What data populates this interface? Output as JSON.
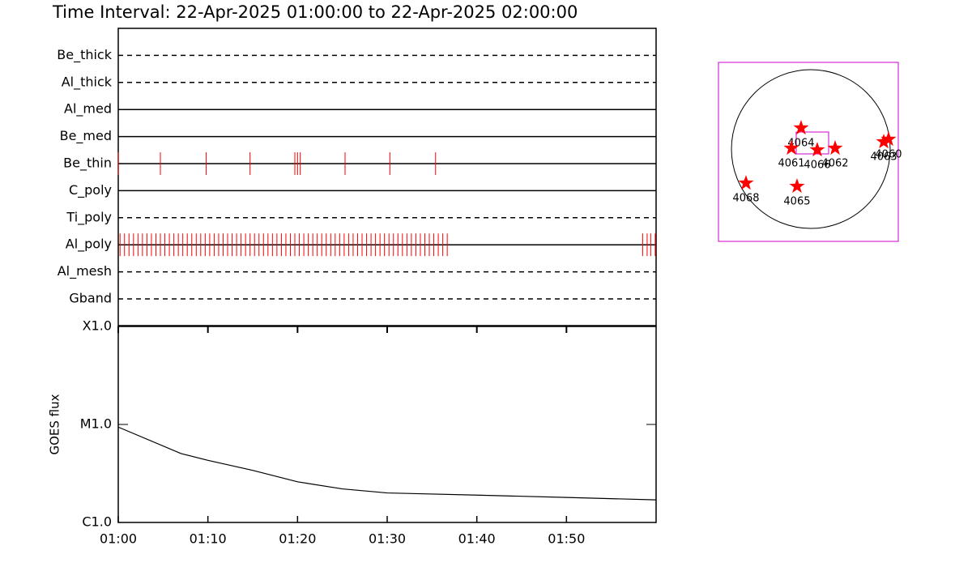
{
  "title": "Time Interval: 22-Apr-2025 01:00:00 to 22-Apr-2025 02:00:00",
  "chart_data": [
    {
      "type": "timeline",
      "color": "#ff0000",
      "xlim": [
        0,
        60
      ],
      "xticks": [
        {
          "value": 0,
          "label": "01:00"
        },
        {
          "value": 10,
          "label": "01:10"
        },
        {
          "value": 20,
          "label": "01:20"
        },
        {
          "value": 30,
          "label": "01:30"
        },
        {
          "value": 40,
          "label": "01:40"
        },
        {
          "value": 50,
          "label": "01:50"
        }
      ],
      "series": [
        {
          "name": "Be_thick",
          "dashed": true,
          "values": []
        },
        {
          "name": "Al_thick",
          "dashed": true,
          "values": []
        },
        {
          "name": "Al_med",
          "dashed": false,
          "values": []
        },
        {
          "name": "Be_med",
          "dashed": false,
          "values": []
        },
        {
          "name": "Be_thin",
          "dashed": false,
          "values": [
            0,
            4.7,
            9.8,
            14.7,
            19.7,
            20.0,
            20.3,
            25.3,
            30.3,
            35.4
          ]
        },
        {
          "name": "C_poly",
          "dashed": false,
          "values": []
        },
        {
          "name": "Ti_poly",
          "dashed": true,
          "values": []
        },
        {
          "name": "Al_poly",
          "dashed": false,
          "values": [
            0.2,
            0.7,
            1.2,
            1.7,
            2.2,
            2.7,
            3.2,
            3.7,
            4.2,
            4.7,
            5.2,
            5.7,
            6.2,
            6.7,
            7.2,
            7.7,
            8.2,
            8.7,
            9.2,
            9.7,
            10.2,
            10.7,
            11.2,
            11.7,
            12.2,
            12.7,
            13.2,
            13.7,
            14.2,
            14.7,
            15.2,
            15.7,
            16.2,
            16.7,
            17.2,
            17.7,
            18.2,
            18.7,
            19.2,
            19.7,
            20.2,
            20.7,
            21.2,
            21.7,
            22.2,
            22.7,
            23.2,
            23.7,
            24.2,
            24.7,
            25.2,
            25.7,
            26.2,
            26.7,
            27.2,
            27.7,
            28.2,
            28.7,
            29.2,
            29.7,
            30.2,
            30.7,
            31.2,
            31.7,
            32.2,
            32.7,
            33.2,
            33.7,
            34.2,
            34.7,
            35.2,
            35.7,
            36.2,
            36.7,
            58.5,
            59.0,
            59.4,
            59.9
          ]
        },
        {
          "name": "Al_mesh",
          "dashed": true,
          "values": []
        },
        {
          "name": "Gband",
          "dashed": true,
          "values": []
        }
      ]
    },
    {
      "type": "line",
      "ylabel": "GOES flux",
      "log_scale": true,
      "color": "#000000",
      "xlim": [
        0,
        60
      ],
      "ylim": [
        1e-06,
        0.0001
      ],
      "yticks": [
        {
          "value": 1e-06,
          "label": "C1.0"
        },
        {
          "value": 1e-05,
          "label": "M1.0"
        },
        {
          "value": 0.0001,
          "label": "X1.0"
        }
      ],
      "x": [
        0,
        7,
        10,
        15,
        20,
        25,
        30,
        40,
        50,
        60
      ],
      "values": [
        9.4e-06,
        5.05e-06,
        4.3e-06,
        3.4e-06,
        2.6e-06,
        2.2e-06,
        2e-06,
        1.9e-06,
        1.8e-06,
        1.7e-06
      ]
    },
    {
      "type": "scatter",
      "color": "#ff0000",
      "frame_color": "#cc00cc",
      "sun_radius": 960,
      "xlim": [
        -1117,
        1058
      ],
      "ylim": [
        -1117,
        1049
      ],
      "labels": [
        "4064",
        "4061",
        "4066",
        "4062",
        "4068",
        "4065",
        "4063",
        "4060"
      ],
      "x": [
        -118,
        -235,
        78,
        294,
        -784,
        -167,
        882,
        940
      ],
      "y": [
        255,
        10,
        -10,
        10,
        -412,
        -451,
        88,
        118
      ]
    }
  ]
}
